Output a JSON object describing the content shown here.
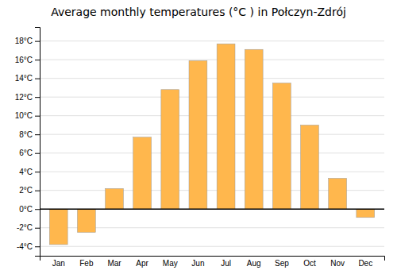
{
  "chart_data": {
    "type": "bar",
    "title": "Average monthly temperatures (°C ) in Połczyn-Zdrój",
    "categories": [
      "Jan",
      "Feb",
      "Mar",
      "Apr",
      "May",
      "Jun",
      "Jul",
      "Aug",
      "Sep",
      "Oct",
      "Nov",
      "Dec"
    ],
    "values": [
      -3.8,
      -2.5,
      2.2,
      7.7,
      12.8,
      15.9,
      17.7,
      17.1,
      13.5,
      9.0,
      3.3,
      -0.9
    ],
    "color": "#FFB74D",
    "ylim": [
      -5,
      19.5
    ],
    "yticks": [
      {
        "value": -4,
        "label": "-4°C"
      },
      {
        "value": -2,
        "label": "-2°C"
      },
      {
        "value": 0,
        "label": "0°C"
      },
      {
        "value": 2,
        "label": "2°C"
      },
      {
        "value": 4,
        "label": "4°C"
      },
      {
        "value": 6,
        "label": "6°C"
      },
      {
        "value": 8,
        "label": "8°C"
      },
      {
        "value": 10,
        "label": "10°C"
      },
      {
        "value": 12,
        "label": "12°C"
      },
      {
        "value": 14,
        "label": "14°C"
      },
      {
        "value": 16,
        "label": "16°C"
      },
      {
        "value": 18,
        "label": "18°C"
      }
    ],
    "grid": true
  }
}
